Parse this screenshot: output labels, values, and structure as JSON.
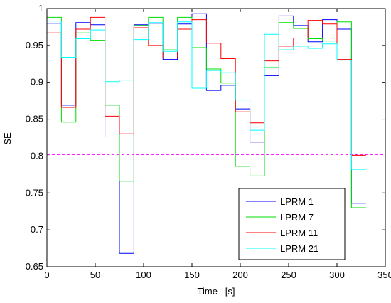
{
  "chart_data": {
    "type": "line",
    "step": true,
    "title": "",
    "xlabel": "Time   [s]",
    "ylabel": "SE",
    "xlim": [
      0,
      350
    ],
    "ylim": [
      0.65,
      1.0
    ],
    "x_ticks": [
      0,
      50,
      100,
      150,
      200,
      250,
      300,
      350
    ],
    "x_tick_labels": [
      "0",
      "50",
      "100",
      "150",
      "200",
      "250",
      "300",
      "350"
    ],
    "y_ticks": [
      0.65,
      0.7,
      0.75,
      0.8,
      0.85,
      0.9,
      0.95,
      1.0
    ],
    "y_tick_labels": [
      "0.65",
      "0.7",
      "0.75",
      "0.8",
      "0.85",
      "0.9",
      "0.95",
      "1"
    ],
    "grid": false,
    "legend_position": "bottom-right",
    "x_edges": [
      0,
      15,
      30,
      45,
      60,
      75,
      90,
      105,
      120,
      135,
      150,
      165,
      180,
      195,
      210,
      225,
      240,
      255,
      270,
      285,
      300,
      315,
      330
    ],
    "series": [
      {
        "name": "LPRM 1",
        "color": "#0000ff",
        "values": [
          0.98,
          0.869,
          0.981,
          0.978,
          0.826,
          0.668,
          0.978,
          0.98,
          0.931,
          0.979,
          0.993,
          0.889,
          0.896,
          0.864,
          0.819,
          0.909,
          0.99,
          0.977,
          0.955,
          0.985,
          0.972,
          0.736
        ]
      },
      {
        "name": "LPRM 7",
        "color": "#00dd00",
        "values": [
          0.988,
          0.846,
          0.967,
          0.957,
          0.869,
          0.766,
          0.977,
          0.988,
          0.944,
          0.988,
          0.947,
          0.918,
          0.899,
          0.786,
          0.773,
          0.92,
          0.981,
          0.973,
          0.959,
          0.956,
          0.982,
          0.73
        ]
      },
      {
        "name": "LPRM 11",
        "color": "#ff0000",
        "values": [
          0.967,
          0.866,
          0.972,
          0.988,
          0.854,
          0.83,
          0.974,
          0.95,
          0.933,
          0.972,
          0.985,
          0.953,
          0.932,
          0.86,
          0.845,
          0.929,
          0.949,
          0.96,
          0.984,
          0.979,
          0.931,
          0.801
        ]
      },
      {
        "name": "LPRM 21",
        "color": "#00ffff",
        "values": [
          0.983,
          0.934,
          0.959,
          0.971,
          0.901,
          0.903,
          0.958,
          0.981,
          0.942,
          0.982,
          0.892,
          0.916,
          0.913,
          0.876,
          0.835,
          0.965,
          0.944,
          0.949,
          0.946,
          0.952,
          0.93,
          0.782
        ]
      }
    ],
    "reference_line": {
      "value": 0.802,
      "color": "#ff00ff",
      "style": "dashed"
    }
  }
}
